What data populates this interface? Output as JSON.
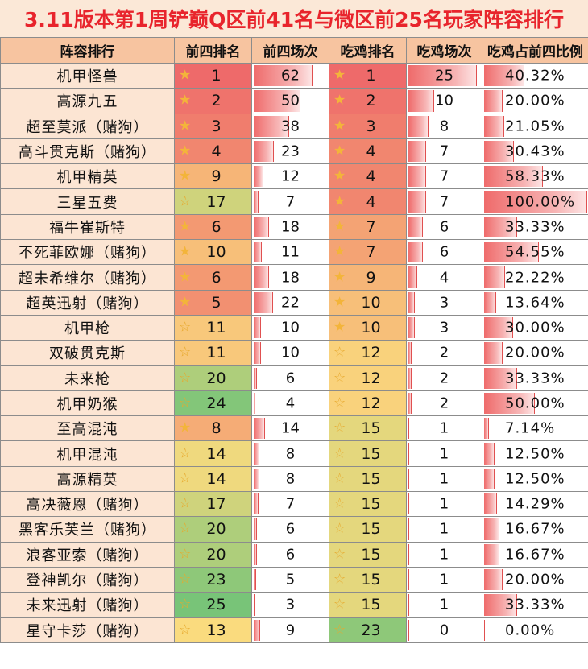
{
  "title": "3.11版本第1周铲巅Q区前41名与微区前25名玩家阵容排行",
  "headers": [
    "阵容排行",
    "前四排名",
    "前四场次",
    "吃鸡排名",
    "吃鸡场次",
    "吃鸡占前四比例"
  ],
  "star_icon": "star-icon",
  "rows": [
    {
      "name": "机甲怪兽",
      "top4_rank": "1",
      "top4_count": "62",
      "win_rank": "1",
      "win_count": "25",
      "ratio": "40.32%"
    },
    {
      "name": "高源九五",
      "top4_rank": "2",
      "top4_count": "50",
      "win_rank": "2",
      "win_count": "10",
      "ratio": "20.00%"
    },
    {
      "name": "超至莫派（赌狗）",
      "top4_rank": "3",
      "top4_count": "38",
      "win_rank": "3",
      "win_count": "8",
      "ratio": "21.05%"
    },
    {
      "name": "高斗贯克斯（赌狗）",
      "top4_rank": "4",
      "top4_count": "23",
      "win_rank": "4",
      "win_count": "7",
      "ratio": "30.43%"
    },
    {
      "name": "机甲精英",
      "top4_rank": "9",
      "top4_count": "12",
      "win_rank": "4",
      "win_count": "7",
      "ratio": "58.33%"
    },
    {
      "name": "三星五费",
      "top4_rank": "17",
      "top4_count": "7",
      "win_rank": "4",
      "win_count": "7",
      "ratio": "100.00%"
    },
    {
      "name": "福牛崔斯特",
      "top4_rank": "6",
      "top4_count": "18",
      "win_rank": "7",
      "win_count": "6",
      "ratio": "33.33%"
    },
    {
      "name": "不死菲欧娜（赌狗）",
      "top4_rank": "10",
      "top4_count": "11",
      "win_rank": "7",
      "win_count": "6",
      "ratio": "54.55%"
    },
    {
      "name": "超未希维尔（赌狗）",
      "top4_rank": "6",
      "top4_count": "18",
      "win_rank": "9",
      "win_count": "4",
      "ratio": "22.22%"
    },
    {
      "name": "超英迅射（赌狗）",
      "top4_rank": "5",
      "top4_count": "22",
      "win_rank": "10",
      "win_count": "3",
      "ratio": "13.64%"
    },
    {
      "name": "机甲枪",
      "top4_rank": "11",
      "top4_count": "10",
      "win_rank": "10",
      "win_count": "3",
      "ratio": "30.00%"
    },
    {
      "name": "双破贯克斯",
      "top4_rank": "11",
      "top4_count": "10",
      "win_rank": "12",
      "win_count": "2",
      "ratio": "20.00%"
    },
    {
      "name": "未来枪",
      "top4_rank": "20",
      "top4_count": "6",
      "win_rank": "12",
      "win_count": "2",
      "ratio": "33.33%"
    },
    {
      "name": "机甲奶猴",
      "top4_rank": "24",
      "top4_count": "4",
      "win_rank": "12",
      "win_count": "2",
      "ratio": "50.00%"
    },
    {
      "name": "至高混沌",
      "top4_rank": "8",
      "top4_count": "14",
      "win_rank": "15",
      "win_count": "1",
      "ratio": "7.14%"
    },
    {
      "name": "机甲混沌",
      "top4_rank": "14",
      "top4_count": "8",
      "win_rank": "15",
      "win_count": "1",
      "ratio": "12.50%"
    },
    {
      "name": "高源精英",
      "top4_rank": "14",
      "top4_count": "8",
      "win_rank": "15",
      "win_count": "1",
      "ratio": "12.50%"
    },
    {
      "name": "高决薇恩（赌狗）",
      "top4_rank": "17",
      "top4_count": "7",
      "win_rank": "15",
      "win_count": "1",
      "ratio": "14.29%"
    },
    {
      "name": "黑客乐芙兰（赌狗）",
      "top4_rank": "20",
      "top4_count": "6",
      "win_rank": "15",
      "win_count": "1",
      "ratio": "16.67%"
    },
    {
      "name": "浪客亚索（赌狗）",
      "top4_rank": "20",
      "top4_count": "6",
      "win_rank": "15",
      "win_count": "1",
      "ratio": "16.67%"
    },
    {
      "name": "登神凯尔（赌狗）",
      "top4_rank": "23",
      "top4_count": "5",
      "win_rank": "15",
      "win_count": "1",
      "ratio": "20.00%"
    },
    {
      "name": "未来迅射（赌狗）",
      "top4_rank": "25",
      "top4_count": "3",
      "win_rank": "15",
      "win_count": "1",
      "ratio": "33.33%"
    },
    {
      "name": "星守卡莎（赌狗）",
      "top4_rank": "13",
      "top4_count": "9",
      "win_rank": "23",
      "win_count": "0",
      "ratio": "0.00%"
    }
  ]
}
